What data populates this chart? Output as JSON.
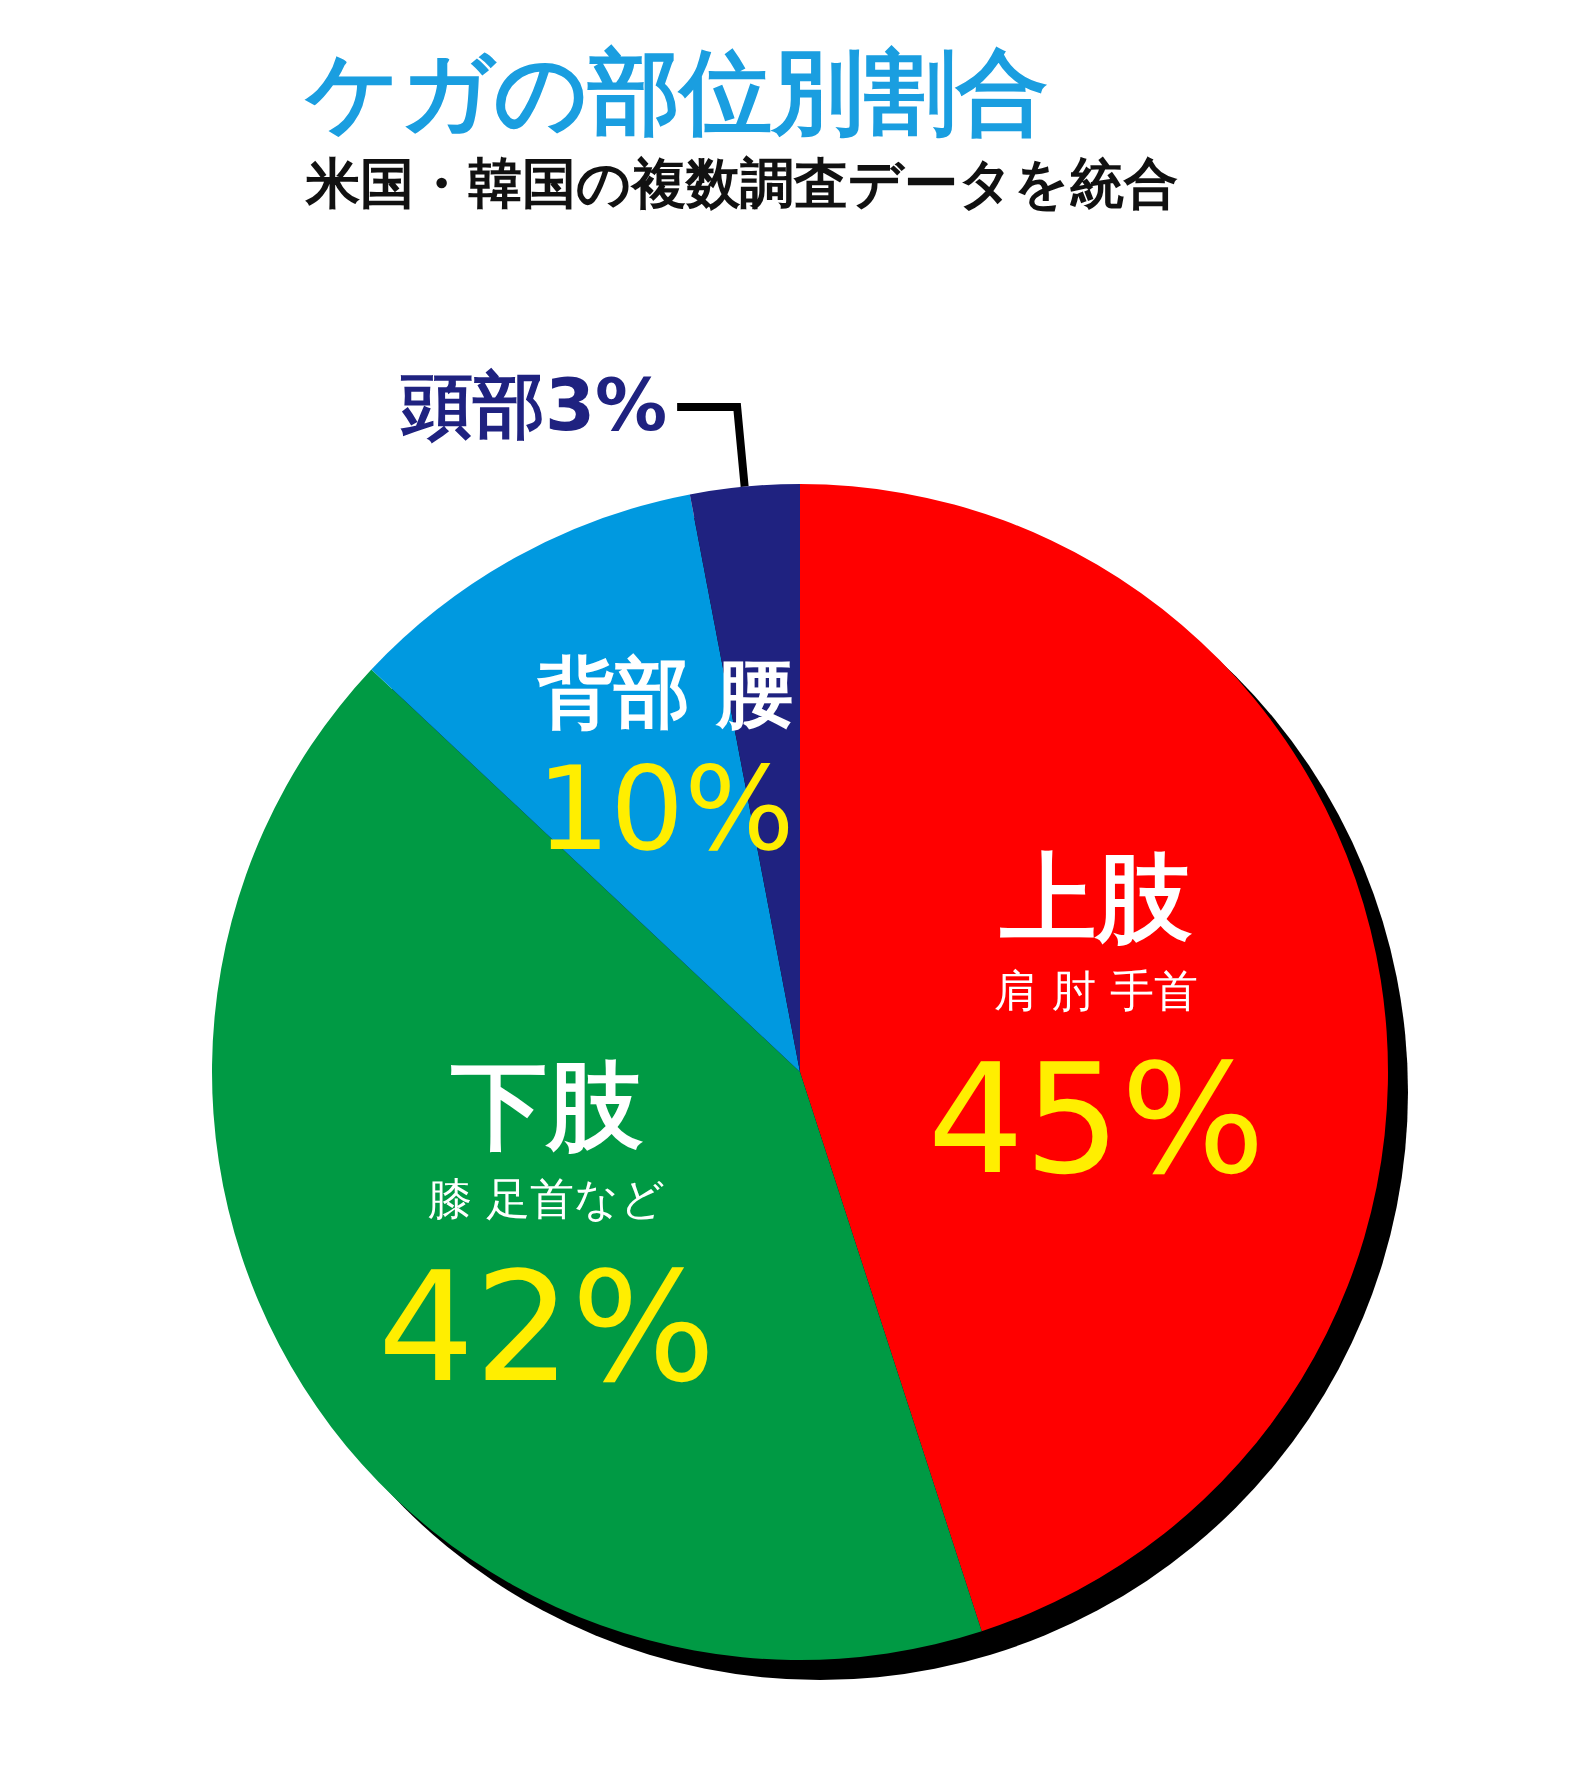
{
  "chart_data": {
    "type": "pie",
    "title": "ケガの部位別割合",
    "subtitle": "米国・韓国の複数調査データを統合",
    "categories": [
      "上肢",
      "下肢",
      "背部 腰",
      "頭部"
    ],
    "values": [
      45,
      42,
      10,
      3
    ],
    "value_labels": [
      "45%",
      "42%",
      "10%",
      "3%"
    ],
    "colors": [
      "#ff0000",
      "#009a44",
      "#0099e0",
      "#1f2280"
    ],
    "annotations": [
      "肩 肘 手首",
      "膝 足首など"
    ],
    "legend": false
  }
}
